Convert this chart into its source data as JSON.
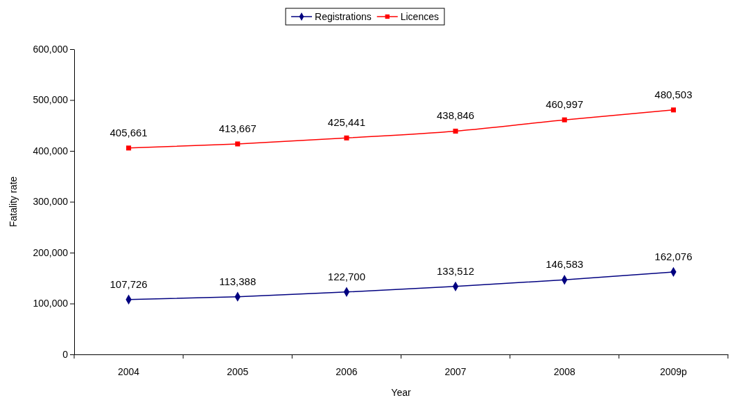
{
  "chart_data": {
    "type": "line",
    "xlabel": "Year",
    "ylabel": "Fatality rate",
    "categories": [
      "2004",
      "2005",
      "2006",
      "2007",
      "2008",
      "2009p"
    ],
    "series": [
      {
        "name": "Registrations",
        "color": "#000080",
        "marker": "diamond",
        "values": [
          107726,
          113388,
          122700,
          133512,
          146583,
          162076
        ],
        "value_labels": [
          "107,726",
          "113,388",
          "122,700",
          "133,512",
          "146,583",
          "162,076"
        ]
      },
      {
        "name": "Licences",
        "color": "#ff0000",
        "marker": "square",
        "values": [
          405661,
          413667,
          425441,
          438846,
          460997,
          480503
        ],
        "value_labels": [
          "405,661",
          "413,667",
          "425,441",
          "438,846",
          "460,997",
          "480,503"
        ]
      }
    ],
    "ylim": [
      0,
      600000
    ],
    "yticks": [
      {
        "value": 0,
        "label": "0"
      },
      {
        "value": 100000,
        "label": "100,000"
      },
      {
        "value": 200000,
        "label": "200,000"
      },
      {
        "value": 300000,
        "label": "300,000"
      },
      {
        "value": 400000,
        "label": "400,000"
      },
      {
        "value": 500000,
        "label": "500,000"
      },
      {
        "value": 600000,
        "label": "600,000"
      }
    ],
    "legend": "top",
    "grid": false,
    "line_style": "solid"
  }
}
